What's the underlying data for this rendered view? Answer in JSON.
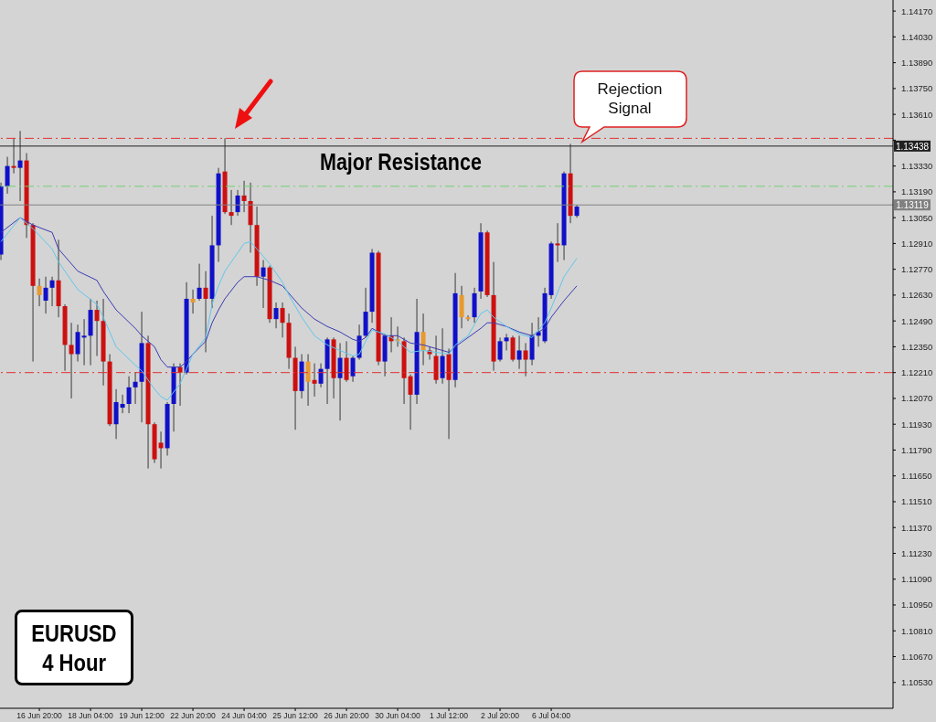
{
  "chart_data": {
    "type": "candlestick",
    "title": "EURUSD",
    "subtitle": "4 Hour",
    "categories": [
      null,
      null,
      null,
      null,
      null,
      null,
      "16 Jun 20:00",
      null,
      null,
      null,
      null,
      null,
      null,
      null,
      "18 Jun 04:00",
      null,
      null,
      null,
      null,
      null,
      null,
      null,
      "19 Jun 12:00",
      null,
      null,
      null,
      null,
      null,
      null,
      null,
      "22 Jun 20:00",
      null,
      null,
      null,
      null,
      null,
      null,
      null,
      "24 Jun 04:00",
      null,
      null,
      null,
      null,
      null,
      null,
      null,
      "25 Jun 12:00",
      null,
      null,
      null,
      null,
      null,
      null,
      null,
      "26 Jun 20:00",
      null,
      null,
      null,
      null,
      null,
      null,
      null,
      "30 Jun 04:00",
      null,
      null,
      null,
      null,
      null,
      null,
      null,
      "1 Jul 12:00",
      null,
      null,
      null,
      null,
      null,
      null,
      null,
      "2 Jul 20:00",
      null,
      null,
      null,
      null,
      null,
      null,
      null,
      "6 Jul 04:00",
      null,
      null,
      null,
      null
    ],
    "ohlc": [
      [
        1.1285,
        1.1324,
        1.1282,
        1.1322
      ],
      [
        1.1322,
        1.1338,
        1.1318,
        1.1333
      ],
      [
        1.1333,
        1.1348,
        1.1329,
        1.1332
      ],
      [
        1.1332,
        1.1352,
        1.1314,
        1.1336
      ],
      [
        1.1336,
        1.134,
        1.1294,
        1.1301
      ],
      [
        1.1301,
        1.1302,
        1.1227,
        1.1268
      ],
      [
        1.1268,
        1.1272,
        1.1257,
        1.1263
      ],
      [
        1.126,
        1.1273,
        1.1253,
        1.1267
      ],
      [
        1.1267,
        1.1273,
        1.1257,
        1.1271
      ],
      [
        1.1271,
        1.1293,
        1.1251,
        1.1257
      ],
      [
        1.1257,
        1.1258,
        1.1222,
        1.1236
      ],
      [
        1.1236,
        1.1248,
        1.1207,
        1.1231
      ],
      [
        1.1231,
        1.1247,
        1.1227,
        1.1243
      ],
      [
        1.124,
        1.125,
        1.1225,
        1.1241
      ],
      [
        1.1241,
        1.1261,
        1.1225,
        1.1255
      ],
      [
        1.1255,
        1.126,
        1.123,
        1.1249
      ],
      [
        1.1249,
        1.1261,
        1.1214,
        1.1227
      ],
      [
        1.1227,
        1.1231,
        1.1192,
        1.1193
      ],
      [
        1.1193,
        1.1212,
        1.1185,
        1.1205
      ],
      [
        1.1202,
        1.1209,
        1.1199,
        1.1204
      ],
      [
        1.1204,
        1.1219,
        1.1199,
        1.1213
      ],
      [
        1.1213,
        1.1221,
        1.1204,
        1.1216
      ],
      [
        1.1216,
        1.1254,
        1.1194,
        1.1237
      ],
      [
        1.1237,
        1.1241,
        1.1169,
        1.1193
      ],
      [
        1.1193,
        1.1194,
        1.1172,
        1.1174
      ],
      [
        1.1183,
        1.1189,
        1.1169,
        1.118
      ],
      [
        1.118,
        1.1205,
        1.1176,
        1.1204
      ],
      [
        1.1204,
        1.1226,
        1.1189,
        1.1224
      ],
      [
        1.1224,
        1.1226,
        1.1203,
        1.1221
      ],
      [
        1.1221,
        1.127,
        1.122,
        1.1261
      ],
      [
        1.1261,
        1.1266,
        1.1253,
        1.1259
      ],
      [
        1.1261,
        1.128,
        1.126,
        1.1267
      ],
      [
        1.1267,
        1.1276,
        1.1232,
        1.1261
      ],
      [
        1.1261,
        1.1306,
        1.1256,
        1.129
      ],
      [
        1.129,
        1.1332,
        1.1281,
        1.1329
      ],
      [
        1.133,
        1.1348,
        1.1307,
        1.1308
      ],
      [
        1.1308,
        1.132,
        1.1301,
        1.1306
      ],
      [
        1.1308,
        1.132,
        1.1306,
        1.1317
      ],
      [
        1.1317,
        1.1325,
        1.1308,
        1.1314
      ],
      [
        1.1314,
        1.1324,
        1.1286,
        1.1301
      ],
      [
        1.1301,
        1.1311,
        1.1268,
        1.1273
      ],
      [
        1.1273,
        1.1282,
        1.1256,
        1.1278
      ],
      [
        1.1278,
        1.1279,
        1.1248,
        1.125
      ],
      [
        1.125,
        1.1259,
        1.1245,
        1.1256
      ],
      [
        1.1256,
        1.1259,
        1.124,
        1.1248
      ],
      [
        1.1248,
        1.1253,
        1.1223,
        1.1229
      ],
      [
        1.1229,
        1.1235,
        1.119,
        1.1211
      ],
      [
        1.1211,
        1.1231,
        1.1207,
        1.1227
      ],
      [
        1.1227,
        1.1231,
        1.1203,
        1.1216
      ],
      [
        1.1217,
        1.1226,
        1.1208,
        1.1215
      ],
      [
        1.1215,
        1.1226,
        1.1213,
        1.1223
      ],
      [
        1.1223,
        1.124,
        1.1204,
        1.1239
      ],
      [
        1.1239,
        1.124,
        1.1207,
        1.1218
      ],
      [
        1.1218,
        1.1237,
        1.1195,
        1.1229
      ],
      [
        1.1229,
        1.1238,
        1.1216,
        1.1217
      ],
      [
        1.1219,
        1.123,
        1.1216,
        1.1229
      ],
      [
        1.1229,
        1.1247,
        1.1228,
        1.1241
      ],
      [
        1.1241,
        1.1267,
        1.124,
        1.1254
      ],
      [
        1.1254,
        1.1288,
        1.1248,
        1.1286
      ],
      [
        1.1286,
        1.1287,
        1.1225,
        1.1227
      ],
      [
        1.1227,
        1.1242,
        1.1219,
        1.1241
      ],
      [
        1.1241,
        1.1251,
        1.1232,
        1.1238
      ],
      [
        1.1239,
        1.1246,
        1.1235,
        1.1238
      ],
      [
        1.1238,
        1.124,
        1.1204,
        1.1218
      ],
      [
        1.1219,
        1.122,
        1.119,
        1.1209
      ],
      [
        1.1209,
        1.1261,
        1.1204,
        1.1243
      ],
      [
        1.1243,
        1.1253,
        1.1225,
        1.1233
      ],
      [
        1.1233,
        1.1235,
        1.1228,
        1.1231
      ],
      [
        1.123,
        1.1241,
        1.1215,
        1.1217
      ],
      [
        1.1218,
        1.1245,
        1.1215,
        1.123
      ],
      [
        1.1231,
        1.1234,
        1.1185,
        1.1217
      ],
      [
        1.1217,
        1.1275,
        1.1213,
        1.1264
      ],
      [
        1.1263,
        1.1268,
        1.1245,
        1.1251
      ],
      [
        1.1251,
        1.1252,
        1.1249,
        1.125
      ],
      [
        1.1251,
        1.1267,
        1.1248,
        1.1264
      ],
      [
        1.1265,
        1.1302,
        1.1261,
        1.1297
      ],
      [
        1.1297,
        1.1298,
        1.1262,
        1.1263
      ],
      [
        1.1263,
        1.1281,
        1.1222,
        1.1227
      ],
      [
        1.1228,
        1.124,
        1.1227,
        1.1238
      ],
      [
        1.1238,
        1.1242,
        1.1233,
        1.124
      ],
      [
        1.124,
        1.1241,
        1.1227,
        1.1228
      ],
      [
        1.1228,
        1.1241,
        1.1223,
        1.1233
      ],
      [
        1.1233,
        1.1237,
        1.1219,
        1.1228
      ],
      [
        1.1228,
        1.1248,
        1.1225,
        1.1241
      ],
      [
        1.1241,
        1.1251,
        1.1235,
        1.1243
      ],
      [
        1.1238,
        1.1267,
        1.1237,
        1.1264
      ],
      [
        1.1263,
        1.1292,
        1.1261,
        1.1291
      ],
      [
        1.1291,
        1.1302,
        1.1281,
        1.129
      ],
      [
        1.129,
        1.133,
        1.1282,
        1.1329
      ],
      [
        1.1329,
        1.1345,
        1.1302,
        1.1306
      ],
      [
        1.1306,
        1.1312,
        1.1305,
        1.1311
      ]
    ],
    "colors": [
      "#1010c8",
      "#1010c8",
      "#cc1010",
      "#1010c8",
      "#cc1010",
      "#cc1010",
      "#e89a30",
      "#1010c8",
      "#1010c8",
      "#cc1010",
      "#cc1010",
      "#cc1010",
      "#1010c8",
      "#1010c8",
      "#1010c8",
      "#cc1010",
      "#cc1010",
      "#cc1010",
      "#1010c8",
      "#1010c8",
      "#1010c8",
      "#1010c8",
      "#1010c8",
      "#cc1010",
      "#cc1010",
      "#cc1010",
      "#1010c8",
      "#1010c8",
      "#cc1010",
      "#1010c8",
      "#e89a30",
      "#1010c8",
      "#cc1010",
      "#1010c8",
      "#1010c8",
      "#cc1010",
      "#cc1010",
      "#1010c8",
      "#cc1010",
      "#cc1010",
      "#cc1010",
      "#1010c8",
      "#cc1010",
      "#1010c8",
      "#cc1010",
      "#cc1010",
      "#cc1010",
      "#1010c8",
      "#e89a30",
      "#cc1010",
      "#1010c8",
      "#1010c8",
      "#cc1010",
      "#1010c8",
      "#cc1010",
      "#1010c8",
      "#1010c8",
      "#1010c8",
      "#1010c8",
      "#cc1010",
      "#1010c8",
      "#cc1010",
      "#e89a30",
      "#cc1010",
      "#cc1010",
      "#1010c8",
      "#e89a30",
      "#cc1010",
      "#cc1010",
      "#1010c8",
      "#cc1010",
      "#1010c8",
      "#e89a30",
      "#e89a30",
      "#1010c8",
      "#1010c8",
      "#cc1010",
      "#cc1010",
      "#1010c8",
      "#1010c8",
      "#cc1010",
      "#1010c8",
      "#cc1010",
      "#1010c8",
      "#1010c8",
      "#1010c8",
      "#1010c8",
      "#cc1010",
      "#1010c8",
      "#cc1010",
      "#1010c8"
    ],
    "series": [
      {
        "type": "line",
        "color": "#3a3ab4",
        "values": [
          1.1297,
          null,
          null,
          1.1305,
          null,
          1.1301,
          null,
          null,
          1.1297,
          1.1288,
          null,
          null,
          1.1276,
          null,
          null,
          1.1271,
          1.1265,
          null,
          1.1255,
          null,
          null,
          1.1245,
          1.1241,
          null,
          1.1235,
          1.1228,
          1.1224,
          null,
          1.1224,
          1.1227,
          1.1231,
          null,
          1.1238,
          1.1248,
          1.1255,
          1.1261,
          null,
          1.127,
          1.1273,
          1.1273,
          1.1273,
          1.1272,
          1.1271,
          null,
          1.1268,
          1.1264,
          null,
          1.1256,
          null,
          1.125,
          null,
          1.1246,
          null,
          1.1243,
          null,
          1.1239,
          1.1238,
          1.124,
          1.1245,
          1.1243,
          1.1241,
          null,
          1.1241,
          null,
          1.1237,
          null,
          1.1236,
          null,
          1.1234,
          null,
          1.1232,
          1.1235,
          null,
          1.124,
          null,
          1.1245,
          1.1248,
          1.1248,
          null,
          1.1246,
          null,
          1.1243,
          null,
          1.1241,
          null,
          1.1245,
          1.1251,
          null,
          1.126,
          null,
          1.1268
        ]
      },
      {
        "type": "line",
        "color": "#5ec8ee",
        "values": [
          1.1292,
          null,
          null,
          1.1305,
          null,
          1.1299,
          null,
          null,
          1.1288,
          1.1281,
          null,
          null,
          1.1266,
          null,
          null,
          1.1258,
          1.1251,
          null,
          1.1235,
          null,
          null,
          1.1225,
          1.1222,
          null,
          1.1212,
          1.1208,
          1.1206,
          null,
          1.1215,
          1.1223,
          1.1231,
          null,
          1.124,
          1.1258,
          1.1268,
          1.1276,
          null,
          1.1286,
          1.1291,
          1.1292,
          1.1288,
          1.1284,
          1.128,
          null,
          1.127,
          1.1263,
          null,
          1.1251,
          null,
          1.1241,
          null,
          1.1236,
          null,
          1.1233,
          null,
          1.123,
          1.1231,
          1.1238,
          1.1244,
          1.1243,
          1.1242,
          null,
          1.1238,
          null,
          1.1232,
          null,
          1.1233,
          null,
          1.1232,
          null,
          1.1231,
          1.1236,
          null,
          1.1241,
          null,
          1.1253,
          1.1255,
          1.1251,
          null,
          1.1246,
          null,
          1.1242,
          null,
          1.124,
          null,
          1.1248,
          1.1256,
          null,
          1.1273,
          null,
          1.1283
        ]
      }
    ],
    "marker": "none",
    "line_style": "solid",
    "ylim": [
      1.1039,
      1.1423
    ],
    "yticks": [
      {
        "value": 1.1417,
        "label": "1.14170"
      },
      {
        "value": 1.1403,
        "label": "1.14030"
      },
      {
        "value": 1.1389,
        "label": "1.13890"
      },
      {
        "value": 1.1375,
        "label": "1.13750"
      },
      {
        "value": 1.1361,
        "label": "1.13610"
      },
      {
        "value": 1.1347,
        "label": null
      },
      {
        "value": 1.1333,
        "label": "1.13330"
      },
      {
        "value": 1.1319,
        "label": "1.13190"
      },
      {
        "value": 1.1305,
        "label": "1.13050"
      },
      {
        "value": 1.1291,
        "label": "1.12910"
      },
      {
        "value": 1.1277,
        "label": "1.12770"
      },
      {
        "value": 1.1263,
        "label": "1.12630"
      },
      {
        "value": 1.1249,
        "label": "1.12490"
      },
      {
        "value": 1.1235,
        "label": "1.12350"
      },
      {
        "value": 1.1221,
        "label": "1.12210"
      },
      {
        "value": 1.1207,
        "label": "1.12070"
      },
      {
        "value": 1.1193,
        "label": "1.11930"
      },
      {
        "value": 1.1179,
        "label": "1.11790"
      },
      {
        "value": 1.1165,
        "label": "1.11650"
      },
      {
        "value": 1.1151,
        "label": "1.11510"
      },
      {
        "value": 1.1137,
        "label": "1.11370"
      },
      {
        "value": 1.1123,
        "label": "1.11230"
      },
      {
        "value": 1.1109,
        "label": "1.11090"
      },
      {
        "value": 1.1095,
        "label": "1.10950"
      },
      {
        "value": 1.1081,
        "label": "1.10810"
      },
      {
        "value": 1.1067,
        "label": "1.10670"
      },
      {
        "value": 1.1053,
        "label": "1.10530"
      }
    ],
    "ref_lines": [
      {
        "axis": "y",
        "value": 1.1348,
        "color": "#e03030",
        "line_style": "dashed"
      },
      {
        "axis": "y",
        "value": 1.13438,
        "label": "1.13438",
        "color": "#202020",
        "line_style": "solid"
      },
      {
        "axis": "y",
        "value": 1.1322,
        "color": "#70d070",
        "line_style": "dashed"
      },
      {
        "axis": "y",
        "value": 1.13119,
        "label": "1.13119",
        "color": "#808080",
        "line_style": "solid"
      },
      {
        "axis": "y",
        "value": 1.1221,
        "color": "#e03030",
        "line_style": "dashed"
      }
    ],
    "annotations": [
      "Major Resistance",
      "Rejection Signal"
    ]
  }
}
